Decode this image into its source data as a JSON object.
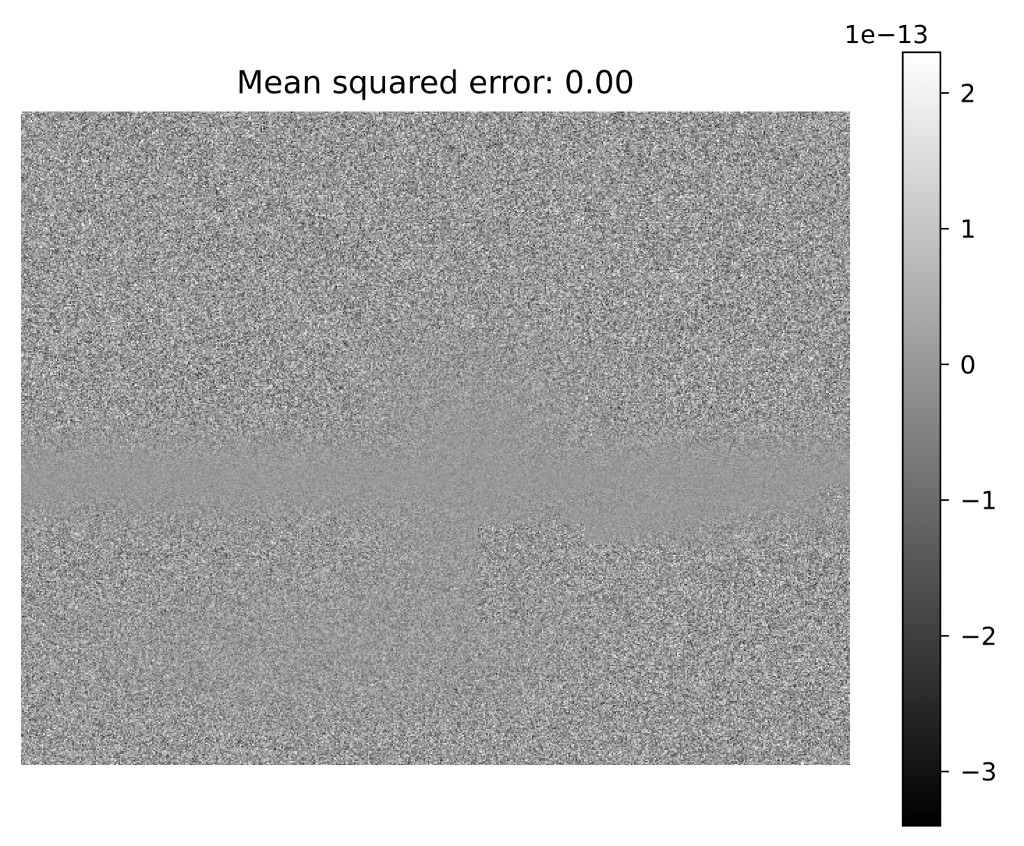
{
  "chart_data": {
    "type": "heatmap",
    "title": "Mean squared error: 0.00",
    "axes_visible": false,
    "colormap": "gray",
    "colorbar": {
      "offset_label": "1e−13",
      "vmin": -3.4,
      "vmax": 2.3,
      "ticks": [
        2,
        1,
        0,
        -1,
        -2,
        -3
      ],
      "tick_labels": [
        "2",
        "1",
        "0",
        "−1",
        "−2",
        "−3"
      ],
      "unit_scale": 1e-13
    },
    "image": {
      "description_values": "noise residual field, mostly near 0 with random fluctuations",
      "typical_value": 0.0
    }
  }
}
